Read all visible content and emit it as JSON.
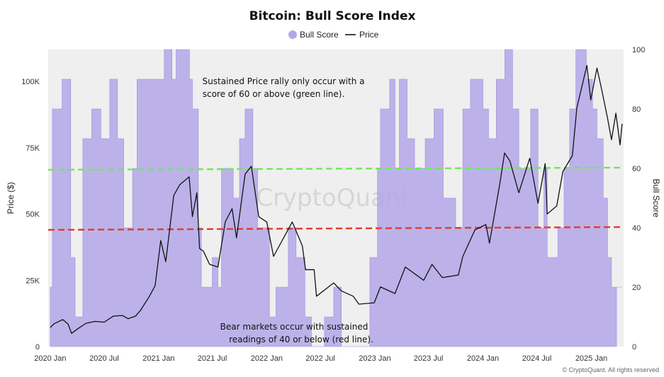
{
  "chart_data": {
    "type": "area",
    "title": "Bitcoin: Bull Score Index",
    "legend": [
      {
        "label": "Bull Score",
        "color": "#b3a7e8",
        "marker": "circle"
      },
      {
        "label": "Price",
        "color": "#111111",
        "marker": "line"
      }
    ],
    "legend_position": "top-center",
    "xlabel": "",
    "ylabel_left": "Price ($)",
    "ylabel_right": "Bull Score",
    "x_ticks": [
      "2020 Jan",
      "2020 Jul",
      "2021 Jan",
      "2021 Jul",
      "2022 Jan",
      "2022 Jul",
      "2023 Jan",
      "2023 Jul",
      "2024 Jan",
      "2024 Jul",
      "2025 Jan"
    ],
    "x_range": [
      "2019-12-25",
      "2025-04-20"
    ],
    "y_left_ticks": [
      "0",
      "25K",
      "50K",
      "75K",
      "100K"
    ],
    "y_left_range": [
      0,
      112000
    ],
    "y_right_ticks": [
      "0",
      "20",
      "40",
      "60",
      "80",
      "100"
    ],
    "y_right_range": [
      0,
      100
    ],
    "grid": false,
    "reference_lines": [
      {
        "value": 60,
        "axis": "right",
        "color": "#6fe85a",
        "style": "dashed"
      },
      {
        "value": 40,
        "axis": "right",
        "color": "#e23b2e",
        "style": "dashed"
      }
    ],
    "annotations": [
      {
        "lines": [
          "Sustained Price rally only occur with a",
          "score of 60 or above (green line)."
        ]
      },
      {
        "lines": [
          "Bear markets occur with sustained",
          "readings of 40 or below (red line)."
        ]
      }
    ],
    "watermark": "CryptoQuant",
    "copyright": "© CryptoQuant. All rights reserved",
    "series": [
      {
        "name": "Price",
        "axis": "left",
        "points": [
          [
            "2020-01-01",
            7200
          ],
          [
            "2020-01-15",
            8700
          ],
          [
            "2020-02-12",
            10200
          ],
          [
            "2020-03-01",
            8500
          ],
          [
            "2020-03-13",
            5000
          ],
          [
            "2020-04-01",
            6600
          ],
          [
            "2020-05-01",
            8800
          ],
          [
            "2020-06-01",
            9500
          ],
          [
            "2020-07-01",
            9200
          ],
          [
            "2020-08-01",
            11500
          ],
          [
            "2020-09-01",
            11700
          ],
          [
            "2020-09-20",
            10500
          ],
          [
            "2020-10-15",
            11500
          ],
          [
            "2020-11-01",
            13700
          ],
          [
            "2020-12-01",
            19000
          ],
          [
            "2020-12-20",
            23000
          ],
          [
            "2021-01-08",
            40000
          ],
          [
            "2021-01-25",
            32000
          ],
          [
            "2021-02-21",
            57000
          ],
          [
            "2021-03-13",
            61000
          ],
          [
            "2021-04-14",
            64000
          ],
          [
            "2021-04-25",
            49000
          ],
          [
            "2021-05-10",
            58000
          ],
          [
            "2021-05-19",
            37000
          ],
          [
            "2021-06-01",
            36000
          ],
          [
            "2021-06-22",
            31000
          ],
          [
            "2021-07-20",
            30000
          ],
          [
            "2021-08-14",
            47000
          ],
          [
            "2021-09-06",
            52000
          ],
          [
            "2021-09-21",
            41000
          ],
          [
            "2021-10-20",
            65000
          ],
          [
            "2021-11-10",
            68000
          ],
          [
            "2021-12-05",
            49000
          ],
          [
            "2022-01-01",
            47000
          ],
          [
            "2022-01-24",
            34000
          ],
          [
            "2022-03-28",
            47000
          ],
          [
            "2022-05-01",
            38000
          ],
          [
            "2022-05-12",
            29000
          ],
          [
            "2022-06-10",
            29000
          ],
          [
            "2022-06-18",
            19000
          ],
          [
            "2022-08-15",
            24000
          ],
          [
            "2022-09-10",
            21000
          ],
          [
            "2022-10-20",
            19000
          ],
          [
            "2022-11-08",
            16000
          ],
          [
            "2022-12-30",
            16500
          ],
          [
            "2023-01-20",
            22500
          ],
          [
            "2023-03-10",
            20000
          ],
          [
            "2023-04-14",
            30000
          ],
          [
            "2023-06-15",
            25000
          ],
          [
            "2023-07-13",
            31000
          ],
          [
            "2023-08-17",
            26000
          ],
          [
            "2023-10-10",
            27000
          ],
          [
            "2023-10-25",
            34000
          ],
          [
            "2023-12-05",
            44000
          ],
          [
            "2024-01-11",
            46000
          ],
          [
            "2024-01-23",
            39000
          ],
          [
            "2024-02-28",
            62000
          ],
          [
            "2024-03-14",
            73000
          ],
          [
            "2024-04-01",
            70000
          ],
          [
            "2024-05-01",
            58000
          ],
          [
            "2024-06-07",
            71000
          ],
          [
            "2024-07-05",
            54000
          ],
          [
            "2024-07-29",
            69000
          ],
          [
            "2024-08-05",
            50000
          ],
          [
            "2024-09-06",
            53000
          ],
          [
            "2024-09-27",
            66000
          ],
          [
            "2024-10-29",
            72000
          ],
          [
            "2024-11-13",
            90000
          ],
          [
            "2024-12-17",
            106000
          ],
          [
            "2024-12-30",
            93000
          ],
          [
            "2025-01-20",
            105000
          ],
          [
            "2025-02-03",
            98000
          ],
          [
            "2025-02-25",
            86000
          ],
          [
            "2025-03-10",
            78000
          ],
          [
            "2025-03-25",
            88000
          ],
          [
            "2025-04-08",
            76000
          ],
          [
            "2025-04-15",
            84000
          ]
        ]
      },
      {
        "name": "Bull Score",
        "axis": "right",
        "points": [
          [
            "2020-01-01",
            20
          ],
          [
            "2020-01-08",
            80
          ],
          [
            "2020-02-10",
            90
          ],
          [
            "2020-03-10",
            30
          ],
          [
            "2020-03-25",
            10
          ],
          [
            "2020-04-20",
            70
          ],
          [
            "2020-05-20",
            80
          ],
          [
            "2020-06-20",
            70
          ],
          [
            "2020-07-20",
            90
          ],
          [
            "2020-08-15",
            70
          ],
          [
            "2020-09-05",
            40
          ],
          [
            "2020-10-05",
            60
          ],
          [
            "2020-10-20",
            90
          ],
          [
            "2021-01-20",
            100
          ],
          [
            "2021-02-15",
            90
          ],
          [
            "2021-03-01",
            100
          ],
          [
            "2021-04-15",
            90
          ],
          [
            "2021-04-25",
            80
          ],
          [
            "2021-05-15",
            40
          ],
          [
            "2021-05-25",
            20
          ],
          [
            "2021-07-01",
            30
          ],
          [
            "2021-07-20",
            20
          ],
          [
            "2021-08-01",
            60
          ],
          [
            "2021-09-10",
            50
          ],
          [
            "2021-10-01",
            70
          ],
          [
            "2021-10-20",
            80
          ],
          [
            "2021-11-15",
            60
          ],
          [
            "2021-12-01",
            40
          ],
          [
            "2022-01-10",
            10
          ],
          [
            "2022-02-01",
            20
          ],
          [
            "2022-03-15",
            40
          ],
          [
            "2022-04-10",
            30
          ],
          [
            "2022-05-10",
            10
          ],
          [
            "2022-06-01",
            0
          ],
          [
            "2022-07-15",
            10
          ],
          [
            "2022-08-15",
            20
          ],
          [
            "2022-09-10",
            0
          ],
          [
            "2022-10-10",
            0
          ],
          [
            "2022-11-10",
            0
          ],
          [
            "2022-12-15",
            30
          ],
          [
            "2023-01-10",
            60
          ],
          [
            "2023-01-20",
            80
          ],
          [
            "2023-02-20",
            90
          ],
          [
            "2023-03-10",
            60
          ],
          [
            "2023-03-25",
            90
          ],
          [
            "2023-04-20",
            70
          ],
          [
            "2023-05-15",
            60
          ],
          [
            "2023-06-20",
            70
          ],
          [
            "2023-07-20",
            80
          ],
          [
            "2023-08-20",
            50
          ],
          [
            "2023-10-01",
            40
          ],
          [
            "2023-10-25",
            80
          ],
          [
            "2023-11-20",
            90
          ],
          [
            "2024-01-01",
            80
          ],
          [
            "2024-01-20",
            70
          ],
          [
            "2024-02-15",
            90
          ],
          [
            "2024-03-15",
            100
          ],
          [
            "2024-04-10",
            80
          ],
          [
            "2024-05-01",
            60
          ],
          [
            "2024-06-10",
            80
          ],
          [
            "2024-07-05",
            40
          ],
          [
            "2024-07-25",
            60
          ],
          [
            "2024-08-05",
            30
          ],
          [
            "2024-09-10",
            40
          ],
          [
            "2024-10-01",
            60
          ],
          [
            "2024-10-20",
            80
          ],
          [
            "2024-11-10",
            100
          ],
          [
            "2024-12-15",
            90
          ],
          [
            "2025-01-05",
            80
          ],
          [
            "2025-01-20",
            70
          ],
          [
            "2025-02-10",
            50
          ],
          [
            "2025-02-25",
            30
          ],
          [
            "2025-03-10",
            20
          ],
          [
            "2025-04-15",
            20
          ]
        ]
      }
    ]
  }
}
